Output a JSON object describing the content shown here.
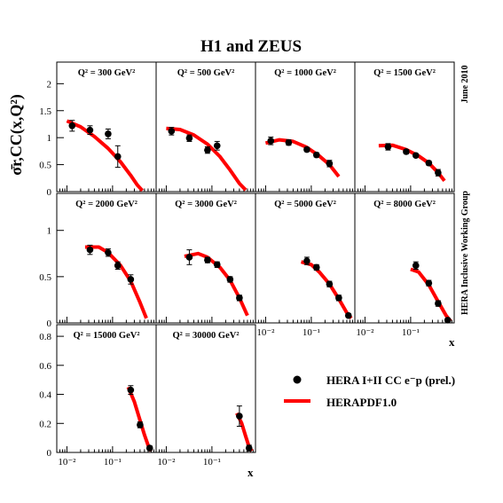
{
  "title": "H1 and ZEUS",
  "date_label": "June 2010",
  "group_label": "HERA Inclusive Working Group",
  "y_axis_label": "σ̄r,CC(x,Q²)",
  "x_axis_label": "x",
  "legend": {
    "data_label": "HERA I+II CC e⁻p (prel.)",
    "curve_label": "HERAPDF1.0",
    "curve_color": "#ff0000",
    "marker_color": "#000000"
  },
  "chart_data": {
    "type": "scatter",
    "x_scale": "log",
    "x_ticks": [
      "10⁻²",
      "10⁻¹"
    ],
    "panels": [
      {
        "label": "Q² = 300 GeV²",
        "ylim": [
          0,
          2.4
        ],
        "yticks": [
          0,
          0.5,
          1,
          1.5,
          2
        ],
        "points": [
          {
            "x": 0.013,
            "y": 1.22,
            "err": 0.1
          },
          {
            "x": 0.032,
            "y": 1.14,
            "err": 0.08
          },
          {
            "x": 0.08,
            "y": 1.07,
            "err": 0.09
          },
          {
            "x": 0.13,
            "y": 0.65,
            "err": 0.2
          }
        ],
        "curve": [
          [
            0.01,
            1.31
          ],
          [
            0.02,
            1.2
          ],
          [
            0.04,
            1.02
          ],
          [
            0.08,
            0.8
          ],
          [
            0.15,
            0.55
          ],
          [
            0.25,
            0.3
          ],
          [
            0.35,
            0.12
          ],
          [
            0.45,
            0.02
          ]
        ]
      },
      {
        "label": "Q² = 500 GeV²",
        "ylim": [
          0,
          2.4
        ],
        "yticks": [],
        "points": [
          {
            "x": 0.013,
            "y": 1.12,
            "err": 0.07
          },
          {
            "x": 0.032,
            "y": 0.99,
            "err": 0.06
          },
          {
            "x": 0.08,
            "y": 0.77,
            "err": 0.06
          },
          {
            "x": 0.13,
            "y": 0.85,
            "err": 0.08
          }
        ],
        "curve": [
          [
            0.01,
            1.17
          ],
          [
            0.02,
            1.15
          ],
          [
            0.04,
            1.05
          ],
          [
            0.08,
            0.88
          ],
          [
            0.15,
            0.65
          ],
          [
            0.25,
            0.4
          ],
          [
            0.4,
            0.15
          ],
          [
            0.55,
            0.03
          ]
        ]
      },
      {
        "label": "Q² = 1000 GeV²",
        "ylim": [
          0,
          2.4
        ],
        "yticks": [],
        "points": [
          {
            "x": 0.013,
            "y": 0.94,
            "err": 0.07
          },
          {
            "x": 0.032,
            "y": 0.91,
            "err": 0.05
          },
          {
            "x": 0.08,
            "y": 0.78,
            "err": 0.04
          },
          {
            "x": 0.13,
            "y": 0.68,
            "err": 0.04
          },
          {
            "x": 0.25,
            "y": 0.52,
            "err": 0.06
          }
        ],
        "curve": [
          [
            0.01,
            0.9
          ],
          [
            0.02,
            0.96
          ],
          [
            0.04,
            0.93
          ],
          [
            0.08,
            0.82
          ],
          [
            0.15,
            0.66
          ],
          [
            0.25,
            0.5
          ],
          [
            0.4,
            0.28
          ]
        ]
      },
      {
        "label": "Q² = 1500 GeV²",
        "ylim": [
          0,
          2.4
        ],
        "yticks": [],
        "points": [
          {
            "x": 0.032,
            "y": 0.83,
            "err": 0.06
          },
          {
            "x": 0.08,
            "y": 0.74,
            "err": 0.04
          },
          {
            "x": 0.13,
            "y": 0.67,
            "err": 0.03
          },
          {
            "x": 0.25,
            "y": 0.53,
            "err": 0.04
          },
          {
            "x": 0.4,
            "y": 0.35,
            "err": 0.06
          }
        ],
        "curve": [
          [
            0.02,
            0.85
          ],
          [
            0.04,
            0.86
          ],
          [
            0.08,
            0.78
          ],
          [
            0.15,
            0.66
          ],
          [
            0.25,
            0.53
          ],
          [
            0.4,
            0.35
          ],
          [
            0.55,
            0.2
          ]
        ]
      },
      {
        "label": "Q² = 2000 GeV²",
        "ylim": [
          0,
          1.4
        ],
        "yticks": [
          0,
          0.5,
          1
        ],
        "points": [
          {
            "x": 0.032,
            "y": 0.79,
            "err": 0.05
          },
          {
            "x": 0.08,
            "y": 0.76,
            "err": 0.04
          },
          {
            "x": 0.13,
            "y": 0.62,
            "err": 0.04
          },
          {
            "x": 0.25,
            "y": 0.47,
            "err": 0.05
          }
        ],
        "curve": [
          [
            0.025,
            0.82
          ],
          [
            0.05,
            0.82
          ],
          [
            0.08,
            0.76
          ],
          [
            0.15,
            0.62
          ],
          [
            0.25,
            0.45
          ],
          [
            0.4,
            0.22
          ],
          [
            0.55,
            0.05
          ]
        ]
      },
      {
        "label": "Q² = 3000 GeV²",
        "ylim": [
          0,
          1.4
        ],
        "yticks": [],
        "points": [
          {
            "x": 0.032,
            "y": 0.71,
            "err": 0.08
          },
          {
            "x": 0.08,
            "y": 0.68,
            "err": 0.03
          },
          {
            "x": 0.13,
            "y": 0.63,
            "err": 0.03
          },
          {
            "x": 0.25,
            "y": 0.47,
            "err": 0.03
          },
          {
            "x": 0.4,
            "y": 0.27,
            "err": 0.03
          }
        ],
        "curve": [
          [
            0.025,
            0.72
          ],
          [
            0.05,
            0.75
          ],
          [
            0.08,
            0.71
          ],
          [
            0.15,
            0.6
          ],
          [
            0.25,
            0.46
          ],
          [
            0.4,
            0.27
          ],
          [
            0.6,
            0.08
          ]
        ]
      },
      {
        "label": "Q² = 5000 GeV²",
        "ylim": [
          0,
          1.4
        ],
        "yticks": [],
        "points": [
          {
            "x": 0.08,
            "y": 0.67,
            "err": 0.04
          },
          {
            "x": 0.13,
            "y": 0.6,
            "err": 0.03
          },
          {
            "x": 0.25,
            "y": 0.42,
            "err": 0.03
          },
          {
            "x": 0.4,
            "y": 0.27,
            "err": 0.03
          },
          {
            "x": 0.65,
            "y": 0.08,
            "err": 0.02
          }
        ],
        "curve": [
          [
            0.06,
            0.66
          ],
          [
            0.1,
            0.63
          ],
          [
            0.15,
            0.55
          ],
          [
            0.25,
            0.42
          ],
          [
            0.4,
            0.26
          ],
          [
            0.6,
            0.11
          ],
          [
            0.75,
            0.05
          ]
        ]
      },
      {
        "label": "Q² = 8000 GeV²",
        "ylim": [
          0,
          1.4
        ],
        "yticks": [],
        "points": [
          {
            "x": 0.13,
            "y": 0.62,
            "err": 0.04
          },
          {
            "x": 0.25,
            "y": 0.43,
            "err": 0.03
          },
          {
            "x": 0.4,
            "y": 0.21,
            "err": 0.03
          },
          {
            "x": 0.65,
            "y": 0.03,
            "err": 0.01
          }
        ],
        "curve": [
          [
            0.1,
            0.58
          ],
          [
            0.15,
            0.55
          ],
          [
            0.25,
            0.41
          ],
          [
            0.4,
            0.23
          ],
          [
            0.6,
            0.08
          ],
          [
            0.75,
            0.02
          ]
        ]
      },
      {
        "label": "Q² = 15000 GeV²",
        "ylim": [
          0,
          0.88
        ],
        "yticks": [
          0,
          0.2,
          0.4,
          0.6,
          0.8
        ],
        "points": [
          {
            "x": 0.25,
            "y": 0.43,
            "err": 0.03
          },
          {
            "x": 0.4,
            "y": 0.19,
            "err": 0.02
          },
          {
            "x": 0.65,
            "y": 0.03,
            "err": 0.015
          }
        ],
        "curve": [
          [
            0.22,
            0.45
          ],
          [
            0.3,
            0.35
          ],
          [
            0.4,
            0.22
          ],
          [
            0.5,
            0.12
          ],
          [
            0.6,
            0.05
          ],
          [
            0.7,
            0.01
          ]
        ]
      },
      {
        "label": "Q² = 30000 GeV²",
        "ylim": [
          0,
          0.88
        ],
        "yticks": [],
        "points": [
          {
            "x": 0.4,
            "y": 0.25,
            "err": 0.07
          },
          {
            "x": 0.65,
            "y": 0.03,
            "err": 0.02
          }
        ],
        "curve": [
          [
            0.35,
            0.27
          ],
          [
            0.45,
            0.2
          ],
          [
            0.55,
            0.11
          ],
          [
            0.65,
            0.04
          ],
          [
            0.75,
            0.01
          ]
        ]
      }
    ]
  }
}
